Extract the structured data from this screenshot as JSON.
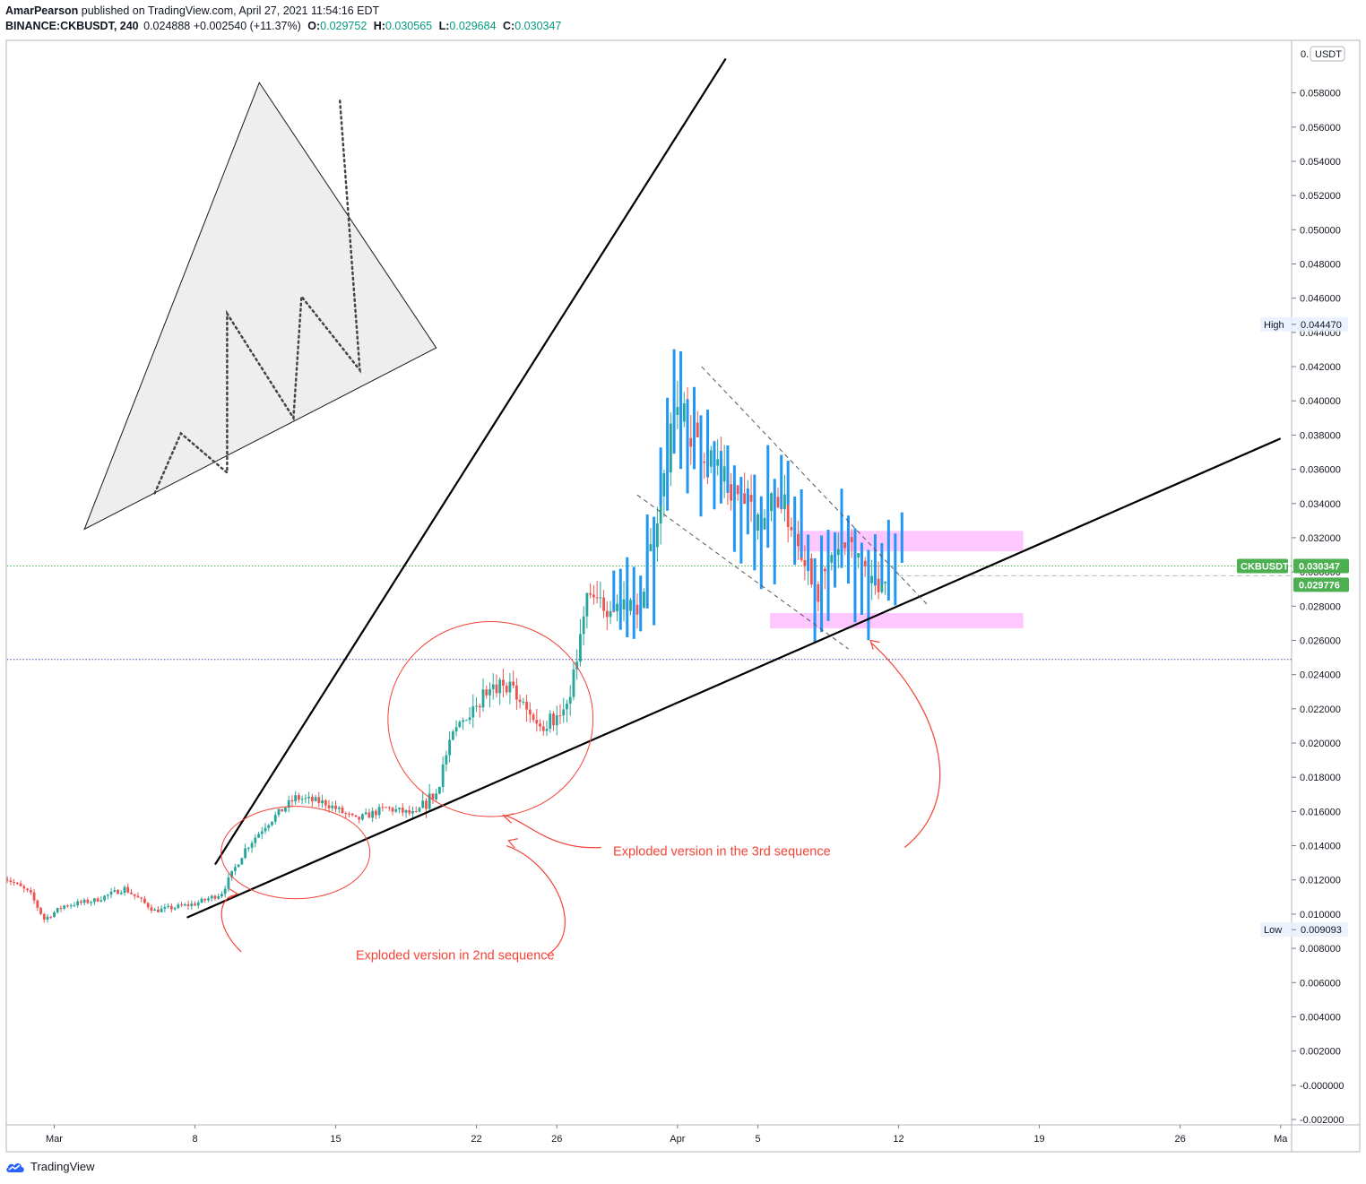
{
  "header": {
    "author": "AmarPearson",
    "published": "published on TradingView.com, April 27, 2021 11:54:16 EDT",
    "symbol": "BINANCE:CKBUSDT, 240",
    "last": "0.024888",
    "change": "+0.002540 (+11.37%)",
    "o_label": "O:",
    "o": "0.029752",
    "h_label": "H:",
    "h": "0.030565",
    "l_label": "L:",
    "l": "0.029684",
    "c_label": "C:",
    "c": "0.030347"
  },
  "footer": {
    "brand": "TradingView"
  },
  "colors": {
    "up": "#26a69a",
    "down": "#ef5350",
    "ghost": "#2196f3",
    "zone": "#ff99ff",
    "annotation": "#f44336",
    "price_tag": "#4caf50"
  },
  "chart_data": {
    "type": "candlestick",
    "currency": "USDT",
    "ylim": [
      -0.002,
      0.0605
    ],
    "y_ticks": [
      "0.058000",
      "0.056000",
      "0.054000",
      "0.052000",
      "0.050000",
      "0.048000",
      "0.046000",
      "0.044000",
      "0.042000",
      "0.040000",
      "0.038000",
      "0.036000",
      "0.034000",
      "0.032000",
      "0.030000",
      "0.028000",
      "0.026000",
      "0.024000",
      "0.022000",
      "0.020000",
      "0.018000",
      "0.016000",
      "0.014000",
      "0.012000",
      "0.010000",
      "0.008000",
      "0.006000",
      "0.004000",
      "0.002000",
      "-0.000000",
      "-0.002000"
    ],
    "y_tick_values": [
      0.058,
      0.056,
      0.054,
      0.052,
      0.05,
      0.048,
      0.046,
      0.044,
      0.042,
      0.04,
      0.038,
      0.036,
      0.034,
      0.032,
      0.03,
      0.028,
      0.026,
      0.024,
      0.022,
      0.02,
      0.018,
      0.016,
      0.014,
      0.012,
      0.01,
      0.008,
      0.006,
      0.004,
      0.002,
      0,
      -0.002
    ],
    "top_tick_partial": "0.",
    "x_ticks": [
      {
        "label": "Mar",
        "day": 0
      },
      {
        "label": "8",
        "day": 7
      },
      {
        "label": "15",
        "day": 14
      },
      {
        "label": "22",
        "day": 21
      },
      {
        "label": "26",
        "day": 25
      },
      {
        "label": "Apr",
        "day": 31
      },
      {
        "label": "5",
        "day": 35
      },
      {
        "label": "12",
        "day": 42
      },
      {
        "label": "19",
        "day": 49
      },
      {
        "label": "26",
        "day": 56
      },
      {
        "label": "Ma",
        "day": 61
      }
    ],
    "xlim_days": [
      -2.5,
      61.2
    ],
    "price_labels": [
      {
        "text": "High",
        "value": "0.044470",
        "y": 0.04447,
        "kind": "high"
      },
      {
        "text": "Low",
        "value": "0.009093",
        "y": 0.009093,
        "kind": "low"
      },
      {
        "text": "CKBUSDT",
        "value": "0.030347",
        "y": 0.030347,
        "kind": "last"
      },
      {
        "text": "",
        "value": "0.029776",
        "y": 0.029776,
        "kind": "green"
      }
    ],
    "keyframes": [
      [
        -2.5,
        0.0122
      ],
      [
        -1.2,
        0.0112
      ],
      [
        -0.5,
        0.0097
      ],
      [
        0.5,
        0.0105
      ],
      [
        2.0,
        0.0108
      ],
      [
        3.5,
        0.0115
      ],
      [
        5.0,
        0.0102
      ],
      [
        7.0,
        0.0106
      ],
      [
        8.3,
        0.0112
      ],
      [
        9.5,
        0.0138
      ],
      [
        10.5,
        0.0152
      ],
      [
        12.0,
        0.0168
      ],
      [
        13.5,
        0.0165
      ],
      [
        15.0,
        0.0155
      ],
      [
        16.5,
        0.0162
      ],
      [
        18.0,
        0.0158
      ],
      [
        19.0,
        0.0172
      ],
      [
        20.0,
        0.021
      ],
      [
        21.0,
        0.0225
      ],
      [
        22.5,
        0.0235
      ],
      [
        24.0,
        0.021
      ],
      [
        25.5,
        0.0218
      ],
      [
        26.5,
        0.0285
      ],
      [
        27.5,
        0.028
      ],
      [
        29.0,
        0.0278
      ],
      [
        30.0,
        0.033
      ],
      [
        31.0,
        0.04
      ],
      [
        32.0,
        0.0375
      ],
      [
        33.5,
        0.035
      ],
      [
        35.0,
        0.033
      ],
      [
        36.0,
        0.0345
      ],
      [
        37.0,
        0.032
      ],
      [
        38.0,
        0.029
      ],
      [
        39.0,
        0.0315
      ],
      [
        40.0,
        0.031
      ],
      [
        41.0,
        0.029
      ],
      [
        41.4,
        0.0303
      ]
    ],
    "ghost_range_days": [
      18.5,
      33.5
    ],
    "trendlines": [
      {
        "style": "solid",
        "from": [
          6.6,
          0.0098
        ],
        "to": [
          61.0,
          0.0378
        ]
      },
      {
        "style": "solid",
        "from": [
          8.0,
          0.0129
        ],
        "to": [
          33.4,
          0.06
        ]
      },
      {
        "style": "dashed",
        "from": [
          32.2,
          0.042
        ],
        "to": [
          43.5,
          0.028
        ]
      },
      {
        "style": "dashed",
        "from": [
          29.0,
          0.0345
        ],
        "to": [
          39.5,
          0.0255
        ]
      }
    ],
    "zones": [
      {
        "from_day": 37.0,
        "to_day": 48.2,
        "y1": 0.0312,
        "y2": 0.0324
      },
      {
        "from_day": 35.6,
        "to_day": 48.2,
        "y1": 0.0267,
        "y2": 0.0276
      }
    ],
    "hlines": [
      {
        "y": 0.030347,
        "style": "dotted",
        "color": "#4caf50",
        "from_day": -2.5
      },
      {
        "y": 0.029776,
        "style": "dashed",
        "color": "#b2b5be",
        "from_day": 42.0
      },
      {
        "y": 0.024888,
        "style": "dotted",
        "color": "#3f51b5",
        "from_day": -2.5
      }
    ],
    "ellipses": [
      {
        "cx_day": 12.0,
        "cy": 0.0136,
        "rx_days": 3.7,
        "ry": 0.0027
      },
      {
        "cx_day": 21.7,
        "cy": 0.0214,
        "rx_days": 5.1,
        "ry": 0.0057
      }
    ],
    "annotations": [
      {
        "text": "Exploded version in 2nd sequence",
        "day": 15.0,
        "y": 0.0076
      },
      {
        "text": "Exploded version in the 3rd sequence",
        "day": 27.8,
        "y": 0.0137
      }
    ],
    "arrows": [
      {
        "path": [
          [
            24.5,
            0.0076
          ],
          [
            26.5,
            0.009
          ],
          [
            24.9,
            0.013
          ],
          [
            22.5,
            0.014
          ]
        ],
        "head_day": 22.6,
        "head_y": 0.0143
      },
      {
        "path": [
          [
            9.3,
            0.0078
          ],
          [
            7.8,
            0.0095
          ],
          [
            8.3,
            0.0111
          ],
          [
            9.0,
            0.0111
          ]
        ],
        "head_day": 9.1,
        "head_y": 0.0112
      },
      {
        "path": [
          [
            27.2,
            0.0139
          ],
          [
            24.6,
            0.0137
          ],
          [
            23.5,
            0.0155
          ],
          [
            22.3,
            0.0158
          ]
        ],
        "head_day": 22.4,
        "head_y": 0.0157
      },
      {
        "path": [
          [
            42.3,
            0.0139
          ],
          [
            45.6,
            0.017
          ],
          [
            43.8,
            0.0225
          ],
          [
            40.6,
            0.0259
          ]
        ],
        "head_day": 40.6,
        "head_y": 0.026
      }
    ],
    "inset_triangle": {
      "vertices": [
        [
          1.5,
          0.0325
        ],
        [
          10.2,
          0.0586
        ],
        [
          19.0,
          0.0431
        ]
      ],
      "zigzag": [
        [
          5.0,
          0.0346
        ],
        [
          6.3,
          0.0381
        ],
        [
          8.6,
          0.0358
        ],
        [
          8.6,
          0.0451
        ],
        [
          11.9,
          0.039
        ],
        [
          12.3,
          0.0461
        ],
        [
          15.2,
          0.0418
        ],
        [
          14.2,
          0.0577
        ]
      ]
    }
  }
}
